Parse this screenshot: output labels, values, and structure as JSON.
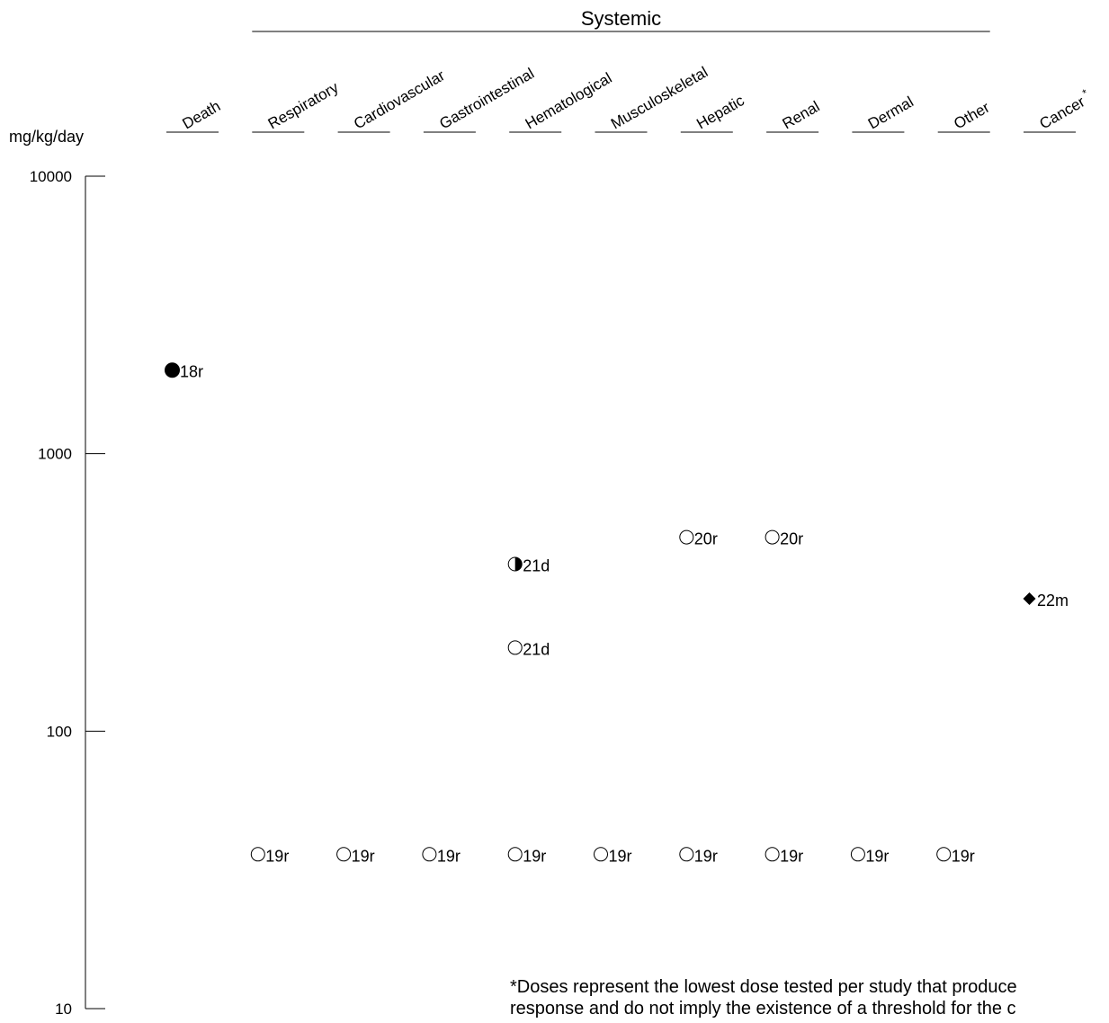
{
  "chart_data": {
    "type": "scatter",
    "title": "",
    "ylabel": "mg/kg/day",
    "yscale": "log",
    "ylim": [
      10,
      10000
    ],
    "y_ticks": [
      "10000",
      "1000",
      "100",
      "10"
    ],
    "group_label": "Systemic",
    "categories": [
      "Death",
      "Respiratory",
      "Cardiovascular",
      "Gastrointestinal",
      "Hematological",
      "Musculoskeletal",
      "Hepatic",
      "Renal",
      "Dermal",
      "Other",
      "Cancer *"
    ],
    "systemic_categories": [
      "Respiratory",
      "Cardiovascular",
      "Gastrointestinal",
      "Hematological",
      "Musculoskeletal",
      "Hepatic",
      "Renal",
      "Dermal",
      "Other"
    ],
    "points": [
      {
        "category": "Death",
        "value": 2000,
        "label": "18r",
        "marker": "filled-circle"
      },
      {
        "category": "Respiratory",
        "value": 36,
        "label": "19r",
        "marker": "open-circle"
      },
      {
        "category": "Cardiovascular",
        "value": 36,
        "label": "19r",
        "marker": "open-circle"
      },
      {
        "category": "Gastrointestinal",
        "value": 36,
        "label": "19r",
        "marker": "open-circle"
      },
      {
        "category": "Hematological",
        "value": 36,
        "label": "19r",
        "marker": "open-circle"
      },
      {
        "category": "Musculoskeletal",
        "value": 36,
        "label": "19r",
        "marker": "open-circle"
      },
      {
        "category": "Hepatic",
        "value": 36,
        "label": "19r",
        "marker": "open-circle"
      },
      {
        "category": "Renal",
        "value": 36,
        "label": "19r",
        "marker": "open-circle"
      },
      {
        "category": "Dermal",
        "value": 36,
        "label": "19r",
        "marker": "open-circle"
      },
      {
        "category": "Other",
        "value": 36,
        "label": "19r",
        "marker": "open-circle"
      },
      {
        "category": "Hematological",
        "value": 400,
        "label": "21d",
        "marker": "half-circle"
      },
      {
        "category": "Hematological",
        "value": 200,
        "label": "21d",
        "marker": "open-circle"
      },
      {
        "category": "Hepatic",
        "value": 500,
        "label": "20r",
        "marker": "open-circle"
      },
      {
        "category": "Renal",
        "value": 500,
        "label": "20r",
        "marker": "open-circle"
      },
      {
        "category": "Cancer *",
        "value": 300,
        "label": "22m",
        "marker": "diamond"
      }
    ],
    "footnote": [
      "*Doses represent the lowest dose tested per study that produce",
      "response and do not imply the existence of a threshold for the c"
    ]
  }
}
